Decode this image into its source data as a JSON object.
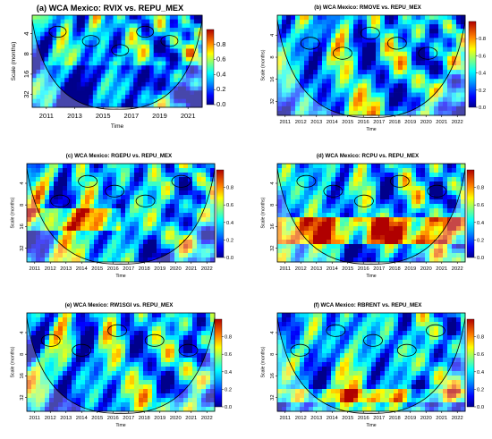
{
  "chart_data": [
    {
      "type": "heatmap",
      "title": "(a) WCA Mexico: RVIX vs. REPU_MEX",
      "xlabel": "Time",
      "ylabel": "Scale (months)",
      "x_ticks": [
        "2011",
        "2013",
        "2015",
        "2017",
        "2019",
        "2021"
      ],
      "y_ticks": [
        "4",
        "8",
        "16",
        "32"
      ],
      "colorbar_ticks": [
        "0.0",
        "0.2",
        "0.4",
        "0.6",
        "0.8"
      ],
      "colorbar_range": [
        0,
        1
      ],
      "y_scale": "log2"
    },
    {
      "type": "heatmap",
      "title": "(b) WCA Mexico: RMOVE vs. REPU_MEX",
      "xlabel": "Time",
      "ylabel": "Scale (months)",
      "x_ticks": [
        "2011",
        "2012",
        "2013",
        "2014",
        "2015",
        "2016",
        "2017",
        "2018",
        "2019",
        "2020",
        "2021",
        "2022"
      ],
      "y_ticks": [
        "4",
        "8",
        "16",
        "32"
      ],
      "colorbar_ticks": [
        "0.0",
        "0.2",
        "0.4",
        "0.6",
        "0.8"
      ],
      "colorbar_range": [
        0,
        1
      ],
      "y_scale": "log2"
    },
    {
      "type": "heatmap",
      "title": "(c) WCA Mexico: RGEPU vs. REPU_MEX",
      "xlabel": "Time",
      "ylabel": "Scale (months)",
      "x_ticks": [
        "2011",
        "2012",
        "2013",
        "2014",
        "2015",
        "2016",
        "2017",
        "2018",
        "2019",
        "2020",
        "2021",
        "2022"
      ],
      "y_ticks": [
        "4",
        "8",
        "16",
        "32"
      ],
      "colorbar_ticks": [
        "0.0",
        "0.2",
        "0.4",
        "0.6",
        "0.8"
      ],
      "colorbar_range": [
        0,
        1
      ],
      "y_scale": "log2"
    },
    {
      "type": "heatmap",
      "title": "(d) WCA Mexico: RCPU vs. REPU_MEX",
      "xlabel": "Time",
      "ylabel": "Scale (months)",
      "x_ticks": [
        "2011",
        "2012",
        "2013",
        "2014",
        "2015",
        "2016",
        "2017",
        "2018",
        "2019",
        "2020",
        "2021",
        "2022"
      ],
      "y_ticks": [
        "4",
        "8",
        "16",
        "32"
      ],
      "colorbar_ticks": [
        "0.0",
        "0.2",
        "0.4",
        "0.6",
        "0.8"
      ],
      "colorbar_range": [
        0,
        1
      ],
      "y_scale": "log2"
    },
    {
      "type": "heatmap",
      "title": "(e) WCA Mexico: RW1SGI vs. REPU_MEX",
      "xlabel": "Time",
      "ylabel": "Scale (months)",
      "x_ticks": [
        "2011",
        "2012",
        "2013",
        "2014",
        "2015",
        "2016",
        "2017",
        "2018",
        "2019",
        "2020",
        "2021",
        "2022"
      ],
      "y_ticks": [
        "4",
        "8",
        "16",
        "32"
      ],
      "colorbar_ticks": [
        "0.0",
        "0.2",
        "0.4",
        "0.6",
        "0.8"
      ],
      "colorbar_range": [
        0,
        1
      ],
      "y_scale": "log2"
    },
    {
      "type": "heatmap",
      "title": "(f) WCA Mexico: RBRENT vs. REPU_MEX",
      "xlabel": "Time",
      "ylabel": "Scale (months)",
      "x_ticks": [
        "2011",
        "2012",
        "2013",
        "2014",
        "2015",
        "2016",
        "2017",
        "2018",
        "2019",
        "2020",
        "2021",
        "2022"
      ],
      "y_ticks": [
        "4",
        "8",
        "16",
        "32"
      ],
      "colorbar_ticks": [
        "0.0",
        "0.2",
        "0.4",
        "0.6",
        "0.8"
      ],
      "colorbar_range": [
        0,
        1
      ],
      "y_scale": "log2"
    }
  ]
}
